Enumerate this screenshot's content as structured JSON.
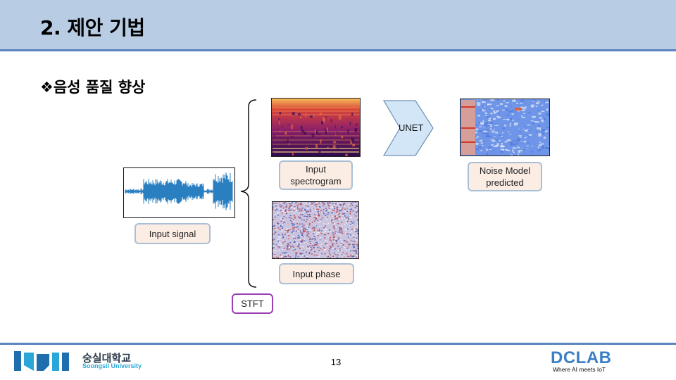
{
  "slide": {
    "title": "2. 제안 기법",
    "subtitle": "❖음성 품질 향상",
    "page_number": "13"
  },
  "labels": {
    "input_signal": "Input signal",
    "input_spectrogram_line1": "Input",
    "input_spectrogram_line2": "spectrogram",
    "input_phase": "Input phase",
    "stft": "STFT",
    "unet": "UNET",
    "noise_model_line1": "Noise Model",
    "noise_model_line2": "predicted"
  },
  "footer": {
    "university_ko": "숭실대학교",
    "university_en": "Soongsil University",
    "lab": "DCLAB",
    "lab_tagline": "Where AI meets IoT"
  },
  "colors": {
    "header_bg": "#b8cce4",
    "accent_line": "#5a84c0",
    "label_bg": "#fbece4",
    "label_border": "#a9bfd6",
    "stft_border": "#9b3fb5",
    "waveform": "#2a7fc0",
    "unet_fill": "#d3e6f8",
    "dclab_blue": "#3b7fc4"
  }
}
